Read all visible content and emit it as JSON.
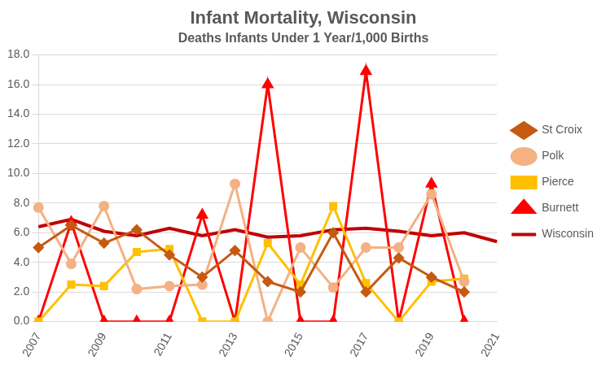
{
  "chart_data": {
    "type": "line",
    "title": "Infant Mortality, Wisconsin",
    "subtitle": "Deaths Infants Under 1 Year/1,000 Births",
    "categories": [
      "2007",
      null,
      "2009",
      null,
      "2011",
      null,
      "2013",
      null,
      "2015",
      null,
      "2017",
      null,
      "2019",
      null,
      "2021"
    ],
    "series": [
      {
        "name": "St Croix",
        "color": "#C55A11",
        "marker": "diamond",
        "values": [
          5.0,
          6.5,
          5.3,
          6.2,
          4.5,
          3.0,
          4.8,
          2.7,
          2.0,
          6.0,
          2.0,
          4.3,
          3.0,
          2.0,
          null
        ]
      },
      {
        "name": "Polk",
        "color": "#F4B183",
        "marker": "circle",
        "values": [
          7.7,
          3.9,
          7.8,
          2.2,
          2.4,
          2.5,
          9.3,
          0.0,
          5.0,
          2.3,
          5.0,
          5.0,
          8.6,
          2.7,
          null
        ]
      },
      {
        "name": "Pierce",
        "color": "#FFC000",
        "marker": "square",
        "values": [
          0.0,
          2.5,
          2.4,
          4.7,
          4.9,
          0.0,
          0.0,
          5.3,
          2.5,
          7.8,
          2.6,
          0.0,
          2.7,
          2.9,
          null
        ]
      },
      {
        "name": "Burnett",
        "color": "#FF0000",
        "marker": "triangle",
        "values": [
          0.0,
          6.7,
          0.0,
          0.0,
          0.0,
          7.2,
          0.0,
          16.0,
          0.0,
          0.0,
          16.9,
          0.0,
          9.3,
          0.0,
          null
        ]
      },
      {
        "name": "Wisconsin",
        "color": "#C00000",
        "marker": "none",
        "values": [
          6.4,
          6.9,
          6.1,
          5.8,
          6.3,
          5.8,
          6.2,
          5.7,
          5.8,
          6.2,
          6.3,
          6.1,
          5.8,
          6.0,
          5.4
        ]
      }
    ],
    "ylim": [
      0,
      18
    ],
    "yticks": [
      {
        "value": 0,
        "label": "0.0"
      },
      {
        "value": 2,
        "label": "2.0"
      },
      {
        "value": 4,
        "label": "4.0"
      },
      {
        "value": 6,
        "label": "6.0"
      },
      {
        "value": 8,
        "label": "8.0"
      },
      {
        "value": 10,
        "label": "10.0"
      },
      {
        "value": 12,
        "label": "12.0"
      },
      {
        "value": 14,
        "label": "14.0"
      },
      {
        "value": 16,
        "label": "16.0"
      },
      {
        "value": 18,
        "label": "18.0"
      }
    ],
    "grid": true,
    "legend": "right"
  }
}
